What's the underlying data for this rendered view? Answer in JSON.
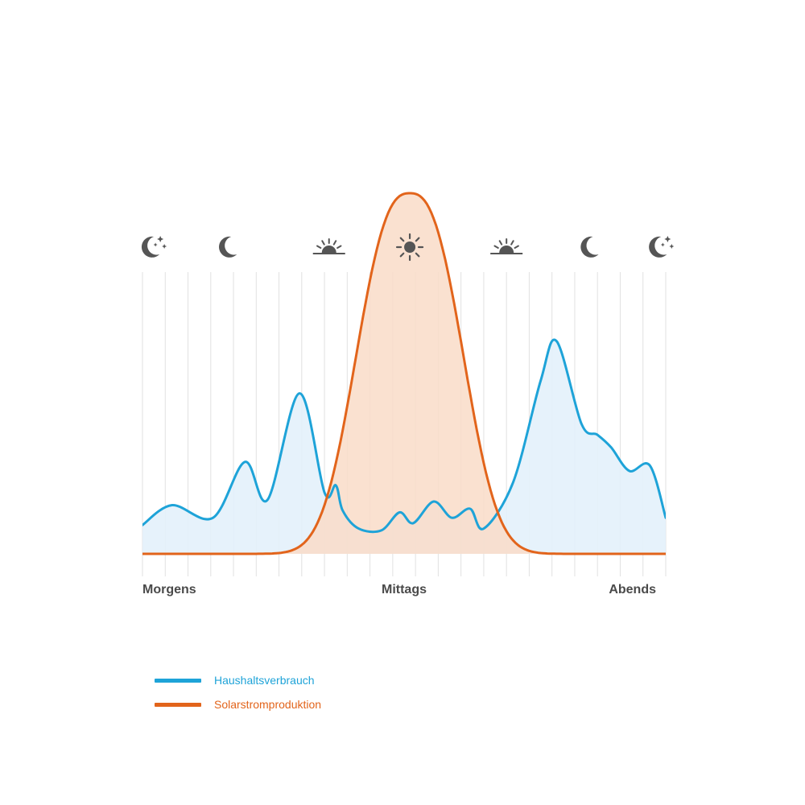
{
  "chart_data": {
    "type": "area",
    "title": "",
    "xlabel": "",
    "ylabel": "",
    "x_tick_labels": [
      {
        "label": "Morgens",
        "x": 0
      },
      {
        "label": "Mittags",
        "x": 11.5
      },
      {
        "label": "Abends",
        "x": 23
      }
    ],
    "xlim": [
      0,
      23
    ],
    "ylim": [
      0,
      100
    ],
    "grid": {
      "vertical": true,
      "horizontal": false,
      "vertical_lines": 24
    },
    "legend_placement": "bottom-left",
    "time_icons": [
      {
        "icon": "moon-stars-icon",
        "x": 0.5
      },
      {
        "icon": "moon-icon",
        "x": 3.9
      },
      {
        "icon": "sunrise-icon",
        "x": 8.2
      },
      {
        "icon": "sun-icon",
        "x": 11.75
      },
      {
        "icon": "sunset-icon",
        "x": 16
      },
      {
        "icon": "moon-icon",
        "x": 19.8
      },
      {
        "icon": "moon-stars-icon",
        "x": 22.8
      }
    ],
    "series": [
      {
        "name": "Haushaltsverbrauch",
        "color": "#1ea3d8",
        "fill": "#e3f1fb",
        "points": [
          [
            0,
            8
          ],
          [
            1.3,
            13.5
          ],
          [
            3.1,
            10
          ],
          [
            4.5,
            25.5
          ],
          [
            5.5,
            15
          ],
          [
            6.9,
            44.5
          ],
          [
            8,
            17
          ],
          [
            8.5,
            19
          ],
          [
            8.8,
            12
          ],
          [
            9.5,
            7
          ],
          [
            10.5,
            6.5
          ],
          [
            11.3,
            11.5
          ],
          [
            11.9,
            8.5
          ],
          [
            12.8,
            14.5
          ],
          [
            13.6,
            10
          ],
          [
            14.4,
            12.5
          ],
          [
            15,
            7
          ],
          [
            16.3,
            20
          ],
          [
            17.5,
            48
          ],
          [
            18.2,
            59
          ],
          [
            19.3,
            36
          ],
          [
            20,
            33
          ],
          [
            20.6,
            29.5
          ],
          [
            21.4,
            23
          ],
          [
            22.3,
            24.5
          ],
          [
            23,
            10
          ]
        ]
      },
      {
        "name": "Solarstromproduktion",
        "color": "#e2641b",
        "fill": "#f9dcc8",
        "peak_x": 11.75,
        "peak_y": 100,
        "width_sigma": 2.2
      }
    ]
  },
  "legend": {
    "items": [
      {
        "label": "Haushaltsverbrauch",
        "color": "#1ea3d8"
      },
      {
        "label": "Solarstromproduktion",
        "color": "#e2641b"
      }
    ]
  },
  "colors": {
    "grid": "#e1e1e1",
    "icon": "#555555",
    "axis_label": "#4a4a4a"
  }
}
